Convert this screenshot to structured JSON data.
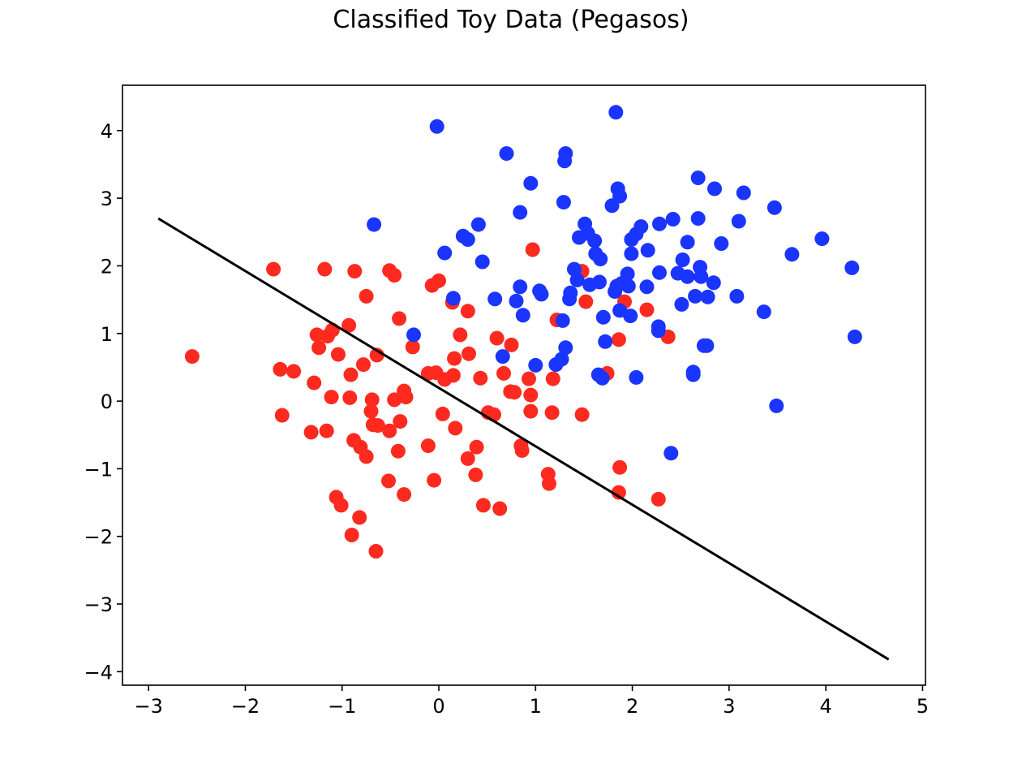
{
  "chart_data": {
    "type": "scatter",
    "title": "Classified Toy Data (Pegasos)",
    "xlabel": "",
    "ylabel": "",
    "xlim": [
      -3.27,
      5.03
    ],
    "ylim": [
      -4.2,
      4.67
    ],
    "x_ticks": [
      -3,
      -2,
      -1,
      0,
      1,
      2,
      3,
      4,
      5
    ],
    "y_ticks": [
      -4,
      -3,
      -2,
      -1,
      0,
      1,
      2,
      3,
      4
    ],
    "x_tick_labels": [
      "−3",
      "−2",
      "−1",
      "0",
      "1",
      "2",
      "3",
      "4",
      "5"
    ],
    "y_tick_labels": [
      "−4",
      "−3",
      "−2",
      "−1",
      "0",
      "1",
      "2",
      "3",
      "4"
    ],
    "grid": false,
    "legend": "none",
    "series": [
      {
        "color": "#ff2a1f",
        "points": [
          [
            -2.55,
            0.66
          ],
          [
            -1.71,
            1.95
          ],
          [
            -1.18,
            1.95
          ],
          [
            -0.87,
            1.92
          ],
          [
            -0.51,
            1.93
          ],
          [
            -0.46,
            1.86
          ],
          [
            -0.75,
            1.55
          ],
          [
            -0.41,
            1.22
          ],
          [
            -1.26,
            0.98
          ],
          [
            -1.15,
            0.96
          ],
          [
            -1.24,
            0.79
          ],
          [
            -1.1,
            1.05
          ],
          [
            -0.93,
            1.12
          ],
          [
            -1.04,
            0.69
          ],
          [
            -0.64,
            0.68
          ],
          [
            -0.78,
            0.54
          ],
          [
            -1.64,
            0.47
          ],
          [
            -1.5,
            0.44
          ],
          [
            -0.91,
            0.39
          ],
          [
            -1.29,
            0.27
          ],
          [
            -1.11,
            0.06
          ],
          [
            -0.92,
            0.05
          ],
          [
            -0.69,
            0.02
          ],
          [
            -0.46,
            0.02
          ],
          [
            -0.34,
            0.06
          ],
          [
            -0.36,
            0.15
          ],
          [
            -0.27,
            0.8
          ],
          [
            -1.62,
            -0.21
          ],
          [
            -0.7,
            -0.15
          ],
          [
            -0.68,
            -0.35
          ],
          [
            -0.63,
            -0.36
          ],
          [
            -0.51,
            -0.44
          ],
          [
            -0.4,
            -0.3
          ],
          [
            -1.32,
            -0.46
          ],
          [
            -1.16,
            -0.44
          ],
          [
            -0.88,
            -0.58
          ],
          [
            -0.81,
            -0.68
          ],
          [
            -0.75,
            -0.82
          ],
          [
            -0.42,
            -0.74
          ],
          [
            -0.52,
            -1.18
          ],
          [
            -0.36,
            -1.38
          ],
          [
            -1.06,
            -1.42
          ],
          [
            -1.01,
            -1.54
          ],
          [
            -0.82,
            -1.72
          ],
          [
            -0.9,
            -1.98
          ],
          [
            -0.65,
            -2.22
          ],
          [
            -0.07,
            1.71
          ],
          [
            0.0,
            1.78
          ],
          [
            0.14,
            1.46
          ],
          [
            0.3,
            1.33
          ],
          [
            0.97,
            2.24
          ],
          [
            0.22,
            0.98
          ],
          [
            0.31,
            0.7
          ],
          [
            0.16,
            0.63
          ],
          [
            -0.11,
            0.41
          ],
          [
            -0.03,
            0.42
          ],
          [
            0.06,
            0.32
          ],
          [
            0.15,
            0.38
          ],
          [
            0.43,
            0.34
          ],
          [
            0.67,
            0.41
          ],
          [
            0.74,
            0.14
          ],
          [
            0.78,
            0.13
          ],
          [
            0.93,
            0.33
          ],
          [
            0.95,
            0.09
          ],
          [
            0.75,
            0.83
          ],
          [
            0.6,
            0.93
          ],
          [
            1.18,
            0.33
          ],
          [
            0.04,
            -0.19
          ],
          [
            0.17,
            -0.4
          ],
          [
            0.51,
            -0.17
          ],
          [
            0.57,
            -0.2
          ],
          [
            0.95,
            -0.15
          ],
          [
            1.17,
            -0.17
          ],
          [
            1.48,
            -0.2
          ],
          [
            -0.11,
            -0.66
          ],
          [
            0.39,
            -0.68
          ],
          [
            0.85,
            -0.66
          ],
          [
            0.86,
            -0.73
          ],
          [
            0.3,
            -0.85
          ],
          [
            0.38,
            -1.09
          ],
          [
            -0.05,
            -1.17
          ],
          [
            1.13,
            -1.08
          ],
          [
            1.14,
            -1.22
          ],
          [
            0.46,
            -1.54
          ],
          [
            0.63,
            -1.59
          ],
          [
            1.22,
            1.2
          ],
          [
            1.48,
            1.92
          ],
          [
            1.52,
            1.47
          ],
          [
            1.92,
            1.47
          ],
          [
            2.15,
            1.35
          ],
          [
            1.86,
            0.91
          ],
          [
            2.37,
            0.95
          ],
          [
            1.74,
            0.41
          ],
          [
            1.87,
            -0.98
          ],
          [
            1.86,
            -1.35
          ],
          [
            2.27,
            -1.45
          ]
        ]
      },
      {
        "color": "#1a35ff",
        "points": [
          [
            -0.02,
            4.06
          ],
          [
            1.83,
            4.27
          ],
          [
            0.7,
            3.66
          ],
          [
            1.31,
            3.66
          ],
          [
            1.3,
            3.55
          ],
          [
            0.95,
            3.22
          ],
          [
            1.85,
            3.14
          ],
          [
            1.87,
            3.03
          ],
          [
            1.79,
            2.89
          ],
          [
            1.29,
            2.94
          ],
          [
            0.84,
            2.79
          ],
          [
            -0.67,
            2.61
          ],
          [
            0.41,
            2.61
          ],
          [
            0.25,
            2.44
          ],
          [
            0.3,
            2.39
          ],
          [
            0.06,
            2.19
          ],
          [
            0.45,
            2.06
          ],
          [
            1.51,
            2.62
          ],
          [
            1.54,
            2.48
          ],
          [
            1.45,
            2.42
          ],
          [
            1.61,
            2.37
          ],
          [
            1.99,
            2.39
          ],
          [
            2.04,
            2.47
          ],
          [
            2.09,
            2.58
          ],
          [
            2.28,
            2.62
          ],
          [
            2.42,
            2.69
          ],
          [
            2.68,
            2.7
          ],
          [
            2.68,
            3.3
          ],
          [
            2.85,
            3.14
          ],
          [
            3.15,
            3.08
          ],
          [
            3.47,
            2.86
          ],
          [
            3.1,
            2.66
          ],
          [
            3.96,
            2.4
          ],
          [
            2.92,
            2.33
          ],
          [
            2.57,
            2.35
          ],
          [
            2.16,
            2.23
          ],
          [
            1.99,
            2.18
          ],
          [
            1.67,
            2.1
          ],
          [
            1.62,
            2.18
          ],
          [
            2.52,
            2.09
          ],
          [
            2.47,
            1.89
          ],
          [
            2.57,
            1.84
          ],
          [
            2.7,
            1.98
          ],
          [
            2.71,
            1.84
          ],
          [
            2.28,
            1.9
          ],
          [
            2.84,
            1.75
          ],
          [
            2.65,
            1.55
          ],
          [
            2.78,
            1.54
          ],
          [
            3.08,
            1.55
          ],
          [
            3.65,
            2.17
          ],
          [
            4.27,
            1.97
          ],
          [
            1.4,
            1.95
          ],
          [
            1.43,
            1.79
          ],
          [
            1.36,
            1.6
          ],
          [
            1.35,
            1.51
          ],
          [
            1.56,
            1.72
          ],
          [
            1.66,
            1.76
          ],
          [
            1.84,
            1.7
          ],
          [
            1.89,
            1.74
          ],
          [
            1.95,
            1.88
          ],
          [
            1.96,
            1.7
          ],
          [
            2.15,
            1.69
          ],
          [
            1.82,
            1.62
          ],
          [
            0.84,
            1.69
          ],
          [
            0.8,
            1.48
          ],
          [
            0.58,
            1.51
          ],
          [
            1.04,
            1.63
          ],
          [
            1.06,
            1.58
          ],
          [
            0.87,
            1.27
          ],
          [
            0.15,
            1.52
          ],
          [
            1.28,
            1.19
          ],
          [
            1.7,
            1.24
          ],
          [
            1.87,
            1.34
          ],
          [
            1.98,
            1.26
          ],
          [
            2.51,
            1.43
          ],
          [
            3.36,
            1.32
          ],
          [
            2.27,
            1.1
          ],
          [
            2.27,
            1.04
          ],
          [
            2.77,
            0.82
          ],
          [
            2.74,
            0.82
          ],
          [
            1.72,
            0.88
          ],
          [
            1.31,
            0.79
          ],
          [
            1.27,
            0.62
          ],
          [
            1.21,
            0.54
          ],
          [
            1.0,
            0.53
          ],
          [
            0.66,
            0.66
          ],
          [
            1.65,
            0.39
          ],
          [
            1.69,
            0.34
          ],
          [
            2.04,
            0.35
          ],
          [
            2.63,
            0.43
          ],
          [
            2.63,
            0.39
          ],
          [
            -0.26,
            0.98
          ],
          [
            3.49,
            -0.07
          ],
          [
            4.3,
            0.95
          ],
          [
            2.4,
            -0.77
          ]
        ]
      }
    ],
    "decision_boundary": {
      "color": "#000000",
      "x": [
        -2.9,
        4.65
      ],
      "y": [
        2.7,
        -3.82
      ]
    }
  }
}
